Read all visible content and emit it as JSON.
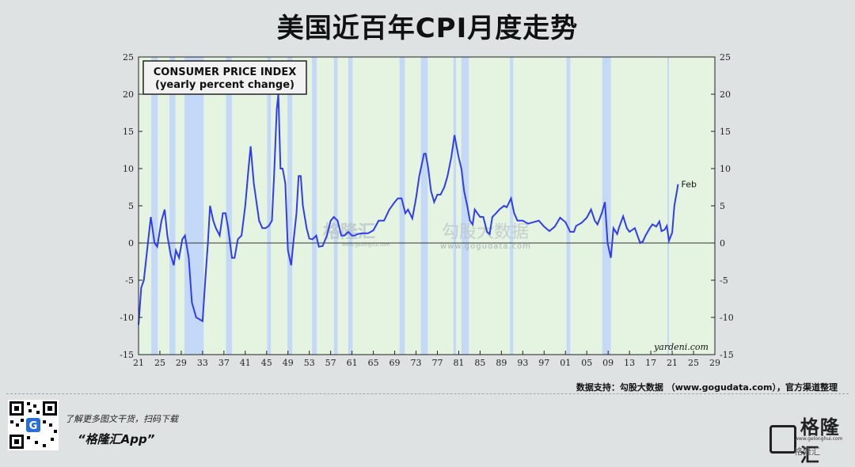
{
  "title": "美国近百年CPI月度走势",
  "chart_data": {
    "type": "line",
    "title": "CONSUMER PRICE INDEX",
    "subtitle": "(yearly percent change)",
    "ylim": [
      -15,
      25
    ],
    "yticks": [
      -15,
      -10,
      -5,
      0,
      5,
      10,
      15,
      20,
      25
    ],
    "xlim": [
      1921,
      2029
    ],
    "xtick_labels": [
      "21",
      "25",
      "29",
      "33",
      "37",
      "41",
      "45",
      "49",
      "53",
      "57",
      "61",
      "65",
      "69",
      "73",
      "77",
      "81",
      "85",
      "89",
      "93",
      "97",
      "01",
      "05",
      "09",
      "13",
      "17",
      "21",
      "25",
      "29"
    ],
    "annotation": "Feb",
    "source_label": "yardeni.com",
    "recessions": [
      [
        1923.4,
        1924.6
      ],
      [
        1926.8,
        1927.9
      ],
      [
        1929.6,
        1933.2
      ],
      [
        1937.4,
        1938.5
      ],
      [
        1945.1,
        1945.8
      ],
      [
        1948.9,
        1949.8
      ],
      [
        1953.5,
        1954.4
      ],
      [
        1957.6,
        1958.3
      ],
      [
        1960.3,
        1961.1
      ],
      [
        1969.9,
        1970.9
      ],
      [
        1973.9,
        1975.2
      ],
      [
        1980.0,
        1980.5
      ],
      [
        1981.5,
        1982.9
      ],
      [
        1990.6,
        1991.2
      ],
      [
        2001.2,
        2001.9
      ],
      [
        2007.9,
        2009.5
      ],
      [
        2020.1,
        2020.4
      ]
    ],
    "series": [
      {
        "points": [
          [
            1921,
            -11
          ],
          [
            1921.5,
            -6
          ],
          [
            1922,
            -5
          ],
          [
            1922.6,
            -1
          ],
          [
            1923.3,
            3.5
          ],
          [
            1924,
            0
          ],
          [
            1924.5,
            -0.5
          ],
          [
            1925.3,
            3
          ],
          [
            1925.9,
            4.5
          ],
          [
            1926.4,
            1
          ],
          [
            1927,
            -1.5
          ],
          [
            1927.6,
            -3
          ],
          [
            1928,
            -1
          ],
          [
            1928.6,
            -2
          ],
          [
            1929.2,
            0.5
          ],
          [
            1929.7,
            1
          ],
          [
            1930.4,
            -2
          ],
          [
            1931,
            -8
          ],
          [
            1931.8,
            -10
          ],
          [
            1932.5,
            -10.3
          ],
          [
            1933,
            -10.5
          ],
          [
            1933.5,
            -5
          ],
          [
            1934,
            0
          ],
          [
            1934.4,
            5
          ],
          [
            1935,
            3
          ],
          [
            1935.5,
            2
          ],
          [
            1936.2,
            1
          ],
          [
            1936.8,
            4
          ],
          [
            1937.3,
            4
          ],
          [
            1937.8,
            2
          ],
          [
            1938.5,
            -2
          ],
          [
            1939,
            -2
          ],
          [
            1939.6,
            0.5
          ],
          [
            1940.3,
            1
          ],
          [
            1941,
            5
          ],
          [
            1941.6,
            10
          ],
          [
            1942,
            13
          ],
          [
            1942.6,
            8
          ],
          [
            1943,
            6
          ],
          [
            1943.6,
            3
          ],
          [
            1944.2,
            2
          ],
          [
            1944.8,
            2
          ],
          [
            1945.4,
            2.3
          ],
          [
            1946,
            3
          ],
          [
            1946.4,
            9
          ],
          [
            1946.9,
            18
          ],
          [
            1947.2,
            20
          ],
          [
            1947.6,
            10
          ],
          [
            1948,
            10
          ],
          [
            1948.5,
            8
          ],
          [
            1949,
            -1
          ],
          [
            1949.6,
            -3
          ],
          [
            1950,
            0
          ],
          [
            1950.6,
            4
          ],
          [
            1951,
            9
          ],
          [
            1951.4,
            9
          ],
          [
            1951.8,
            5
          ],
          [
            1952.5,
            2
          ],
          [
            1953,
            0.6
          ],
          [
            1953.6,
            0.5
          ],
          [
            1954.3,
            1
          ],
          [
            1954.8,
            -0.5
          ],
          [
            1955.5,
            -0.4
          ],
          [
            1956.3,
            1
          ],
          [
            1957,
            3
          ],
          [
            1957.6,
            3.5
          ],
          [
            1958.3,
            3
          ],
          [
            1959,
            1
          ],
          [
            1959.6,
            1
          ],
          [
            1960.3,
            1.5
          ],
          [
            1961,
            1
          ],
          [
            1961.5,
            1
          ],
          [
            1962,
            1.2
          ],
          [
            1963,
            1.3
          ],
          [
            1964,
            1.3
          ],
          [
            1965,
            1.7
          ],
          [
            1966,
            3
          ],
          [
            1967,
            3
          ],
          [
            1968,
            4.5
          ],
          [
            1969,
            5.5
          ],
          [
            1969.6,
            6
          ],
          [
            1970.3,
            6
          ],
          [
            1971,
            4
          ],
          [
            1971.5,
            4.5
          ],
          [
            1972.3,
            3.3
          ],
          [
            1973,
            6
          ],
          [
            1973.6,
            9
          ],
          [
            1974.5,
            12
          ],
          [
            1974.8,
            12
          ],
          [
            1975.3,
            10
          ],
          [
            1975.8,
            7
          ],
          [
            1976.4,
            5.5
          ],
          [
            1977,
            6.5
          ],
          [
            1977.6,
            6.5
          ],
          [
            1978.3,
            7.5
          ],
          [
            1978.9,
            9
          ],
          [
            1979.6,
            11.5
          ],
          [
            1980.2,
            14.5
          ],
          [
            1980.6,
            13
          ],
          [
            1981,
            11.5
          ],
          [
            1981.5,
            10
          ],
          [
            1982,
            7
          ],
          [
            1982.6,
            5
          ],
          [
            1983.1,
            3
          ],
          [
            1983.6,
            2.5
          ],
          [
            1984,
            4.5
          ],
          [
            1984.5,
            4
          ],
          [
            1985,
            3.5
          ],
          [
            1985.6,
            3.5
          ],
          [
            1986.3,
            1.5
          ],
          [
            1986.8,
            1.2
          ],
          [
            1987.3,
            3.5
          ],
          [
            1988,
            4
          ],
          [
            1988.6,
            4.5
          ],
          [
            1989.5,
            5
          ],
          [
            1990,
            4.8
          ],
          [
            1990.8,
            6
          ],
          [
            1991.4,
            4
          ],
          [
            1992,
            3
          ],
          [
            1993,
            3
          ],
          [
            1994,
            2.6
          ],
          [
            1995,
            2.8
          ],
          [
            1996,
            3
          ],
          [
            1997,
            2.2
          ],
          [
            1998,
            1.6
          ],
          [
            1999,
            2.2
          ],
          [
            2000,
            3.4
          ],
          [
            2001,
            2.8
          ],
          [
            2001.9,
            1.5
          ],
          [
            2002.6,
            1.5
          ],
          [
            2003,
            2.3
          ],
          [
            2004,
            2.7
          ],
          [
            2005,
            3.4
          ],
          [
            2005.8,
            4.5
          ],
          [
            2006.5,
            3
          ],
          [
            2007,
            2.5
          ],
          [
            2007.8,
            4
          ],
          [
            2008.4,
            5.5
          ],
          [
            2008.9,
            0
          ],
          [
            2009.5,
            -2
          ],
          [
            2010,
            2
          ],
          [
            2010.7,
            1.2
          ],
          [
            2011,
            2
          ],
          [
            2011.8,
            3.6
          ],
          [
            2012.5,
            2
          ],
          [
            2013,
            1.5
          ],
          [
            2014,
            2
          ],
          [
            2015,
            0
          ],
          [
            2015.5,
            0.2
          ],
          [
            2016,
            1
          ],
          [
            2016.8,
            2
          ],
          [
            2017.3,
            2.5
          ],
          [
            2018,
            2.2
          ],
          [
            2018.6,
            2.9
          ],
          [
            2019,
            1.6
          ],
          [
            2019.6,
            1.8
          ],
          [
            2020,
            2.3
          ],
          [
            2020.4,
            0.3
          ],
          [
            2021,
            1.4
          ],
          [
            2021.4,
            5
          ],
          [
            2021.9,
            7
          ],
          [
            2022.1,
            7.9
          ]
        ]
      }
    ]
  },
  "credit": "数据支持：勾股大数据 （www.gogudata.com），官方渠道整理",
  "watermark_main": "格隆汇",
  "watermark_sub": "www.gelonghui.com",
  "watermark2_main": "勾股大数据",
  "watermark2_sub": "www.gogudata.com",
  "promo_line1": "了解更多图文干货，扫码下载",
  "promo_line2": "“格隆汇App”",
  "logo_text": "格隆汇",
  "logo_sub": "www.gelonghui.com",
  "watermark_bottom": "格隆汇"
}
